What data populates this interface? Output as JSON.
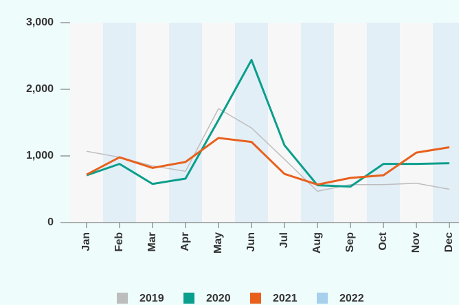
{
  "chart_data": {
    "type": "line",
    "categories": [
      "Jan",
      "Feb",
      "Mar",
      "Apr",
      "May",
      "Jun",
      "Jul",
      "Aug",
      "Sep",
      "Oct",
      "Nov",
      "Dec"
    ],
    "series": [
      {
        "name": "2019",
        "color": "#bdbdbd",
        "values": [
          1070,
          980,
          850,
          770,
          1710,
          1420,
          950,
          470,
          570,
          570,
          590,
          500
        ]
      },
      {
        "name": "2020",
        "color": "#0a9e8c",
        "values": [
          710,
          880,
          580,
          660,
          1540,
          2440,
          1160,
          560,
          540,
          880,
          880,
          890
        ]
      },
      {
        "name": "2021",
        "color": "#e8601c",
        "values": [
          720,
          980,
          820,
          910,
          1270,
          1210,
          730,
          570,
          670,
          710,
          1050,
          1130
        ]
      },
      {
        "name": "2022",
        "color": "#a6d0ec",
        "values": [
          null,
          null,
          null,
          null,
          null,
          null,
          null,
          null,
          null,
          null,
          null,
          null
        ]
      }
    ],
    "ylim": [
      0,
      3000
    ],
    "yticks": [
      0,
      {
        "value": 1000,
        "label": "1,000"
      },
      {
        "value": 2000,
        "label": "2,000"
      },
      {
        "value": 3000,
        "label": "3,000"
      }
    ],
    "legend": "bottom"
  }
}
